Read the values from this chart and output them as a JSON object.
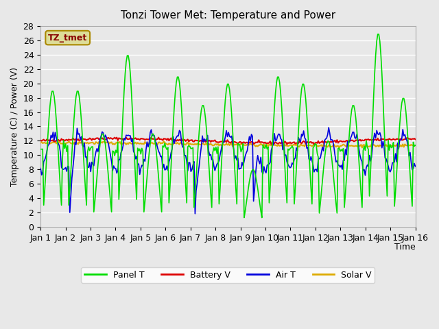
{
  "title": "Tonzi Tower Met: Temperature and Power",
  "ylabel": "Temperature (C) / Power (V)",
  "xlabel": "Time",
  "legend_labels": [
    "Panel T",
    "Battery V",
    "Air T",
    "Solar V"
  ],
  "legend_colors": [
    "#00dd00",
    "#dd0000",
    "#0000dd",
    "#ddaa00"
  ],
  "annotation_text": "TZ_tmet",
  "annotation_bg": "#dddd99",
  "annotation_border": "#aa8800",
  "annotation_text_color": "#880000",
  "ylim": [
    0,
    28
  ],
  "background_color": "#e8e8e8",
  "plot_bg": "#e8e8e8",
  "grid_color": "#ffffff",
  "xtick_labels": [
    "Jan 1",
    "Jan 2",
    "Jan 3",
    "Jan 4",
    "Jan 5",
    "Jan 6",
    "Jan 7",
    "Jan 8",
    "Jan 9",
    "Jan 10",
    "Jan 11",
    "Jan 12",
    "Jan 13",
    "Jan 14",
    "Jan 15",
    "Jan 16"
  ],
  "n_days": 15,
  "pts_per_day": 24
}
